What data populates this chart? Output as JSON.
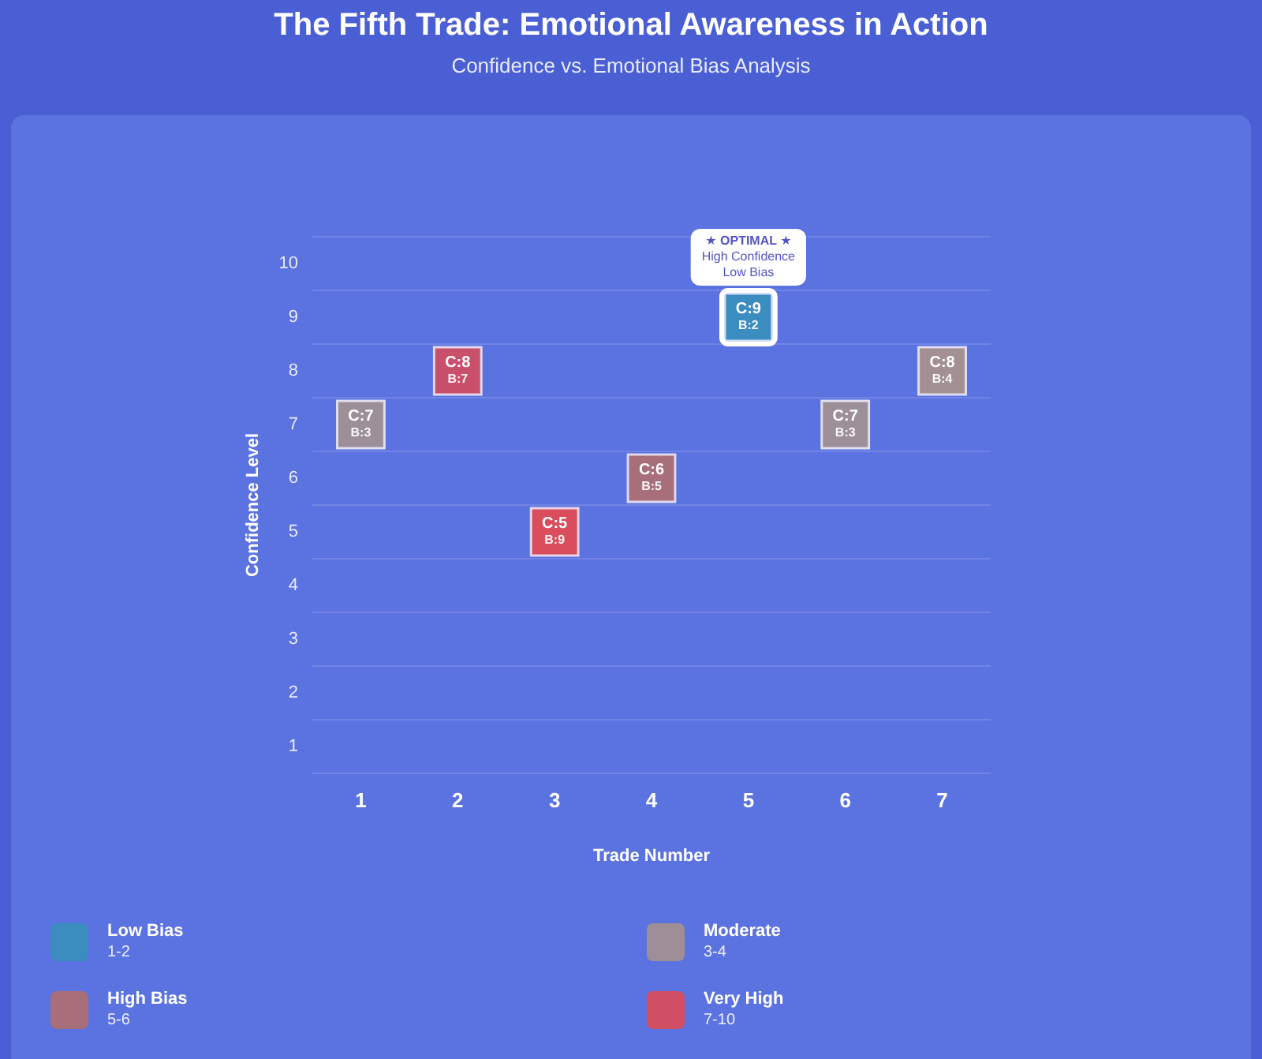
{
  "chart_data": {
    "type": "scatter",
    "title": "The Fifth Trade: Emotional Awareness in Action",
    "subtitle": "Confidence vs. Emotional Bias Analysis",
    "xlabel": "Trade Number",
    "ylabel": "Confidence Level",
    "series": [
      {
        "name": "Low Bias\n1-2",
        "color": "#3b8cbf",
        "x": [
          5
        ],
        "values": [
          9
        ],
        "value_labels": [
          "C:9\nB:2"
        ]
      },
      {
        "name": "Moderate\n3-4",
        "color": "#9e8f96",
        "x": [
          1,
          6,
          7
        ],
        "values": [
          7,
          7,
          8
        ],
        "colors": [
          "#9c8f98",
          "#9c8f98",
          "#a39092"
        ],
        "value_labels": [
          "C:7\nB:3",
          "C:7\nB:3",
          "C:8\nB:4"
        ]
      },
      {
        "name": "High Bias\n5-6",
        "color": "#a86f7a",
        "x": [
          4
        ],
        "values": [
          6
        ],
        "value_labels": [
          "C:6\nB:5"
        ]
      },
      {
        "name": "Very High\n7-10",
        "color": "#d04f65",
        "x": [
          2,
          3
        ],
        "values": [
          8,
          5
        ],
        "colors": [
          "#c8506b",
          "#d94d5d"
        ],
        "value_labels": [
          "C:8\nB:7",
          "C:5\nB:9"
        ]
      }
    ],
    "xlim": [
      0.5,
      7.5
    ],
    "xticks": [
      1,
      2,
      3,
      4,
      5,
      6,
      7
    ],
    "ylim": [
      0.5,
      10.5
    ],
    "yticks": [
      1,
      2,
      3,
      4,
      5,
      6,
      7,
      8,
      9,
      10
    ],
    "grid": "y",
    "legend": "bottom",
    "marker": "square",
    "annotations": [
      {
        "text": "★ OPTIMAL ★\nHigh Confidence\nLow Bias",
        "x": 5,
        "y": 9
      }
    ]
  }
}
